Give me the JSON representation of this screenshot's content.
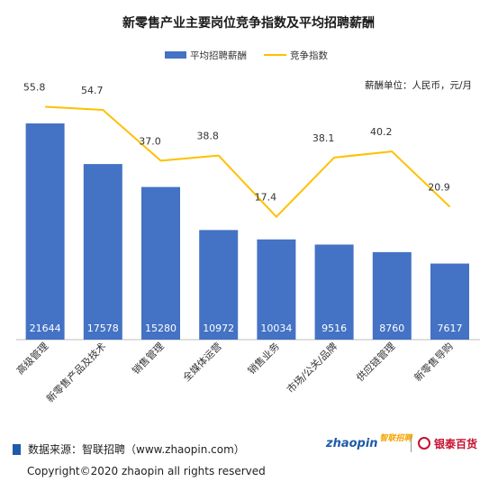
{
  "chart_data": {
    "type": "bar",
    "title": "新零售产业主要岗位竞争指数及平均招聘薪酬",
    "unit_note": "薪酬单位：人民币，元/月",
    "categories": [
      "高级管理",
      "新零售产品及技术",
      "销售管理",
      "全媒体运营",
      "销售业务",
      "市场/公关/品牌",
      "供应链管理",
      "新零售导购"
    ],
    "series": [
      {
        "name": "平均招聘薪酬",
        "type": "bar",
        "values": [
          21644,
          17578,
          15280,
          10972,
          10034,
          9516,
          8760,
          7617
        ],
        "color": "#4472c4"
      },
      {
        "name": "竞争指数",
        "type": "line",
        "values": [
          55.8,
          54.7,
          37.0,
          38.8,
          17.4,
          38.1,
          40.2,
          20.9
        ],
        "value_labels": [
          "55.8",
          "54.7",
          "37.0",
          "38.8",
          "17.4",
          "38.1",
          "40.2",
          "20.9"
        ],
        "color": "#ffc000"
      }
    ],
    "legend_position": "top-center",
    "grid": false
  },
  "footer": {
    "source": "数据来源：智联招聘（www.zhaopin.com）",
    "copyright": "Copyright©2020 zhaopin all rights reserved",
    "logo_zhaopin_main": "zhaopin",
    "logo_zhaopin_accent": "智联招聘",
    "logo_yintai": "银泰百货"
  }
}
